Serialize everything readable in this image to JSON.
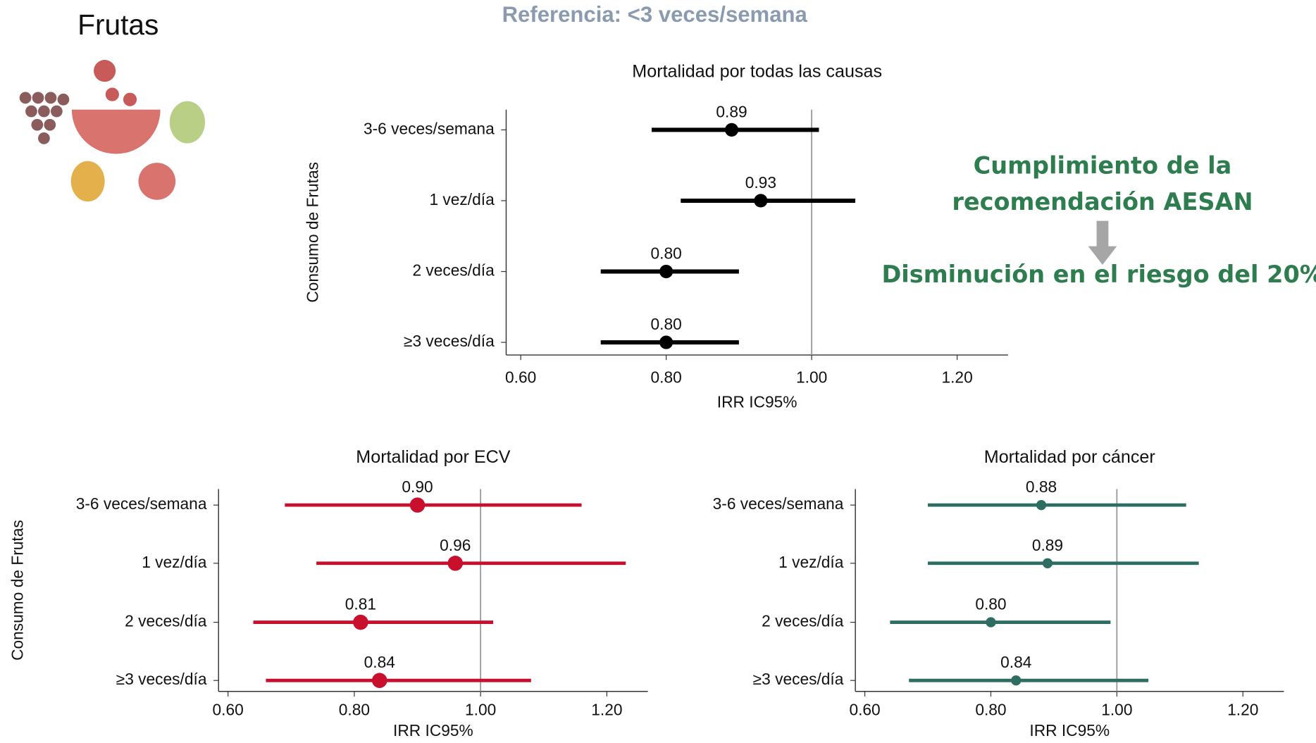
{
  "header": {
    "title": "Frutas",
    "subtitle": "Referencia: <3 veces/semana"
  },
  "annotations": [
    "Cumplimiento de la",
    "recomendación AESAN",
    "Disminución en el riesgo del 20%"
  ],
  "chart_data": [
    {
      "type": "forest",
      "title": "Mortalidad por todas las causas",
      "x_label": "IRR IC95%",
      "y_label": "Consumo de Frutas",
      "categories": [
        "3-6 veces/semana",
        "1 vez/día",
        "2 veces/día",
        "≥3 veces/día"
      ],
      "values": [
        0.89,
        0.93,
        0.8,
        0.8
      ],
      "value_labels": [
        "0.89",
        "0.93",
        "0.80",
        "0.80"
      ],
      "lower": [
        0.78,
        0.82,
        0.71,
        0.71
      ],
      "upper": [
        1.01,
        1.06,
        0.9,
        0.9
      ],
      "color": "#000000",
      "reference": 1,
      "xlim": [
        0.58,
        1.27
      ],
      "xticks": [
        {
          "value": 0.6,
          "label": "0.60"
        },
        {
          "value": 0.8,
          "label": "0.80"
        },
        {
          "value": 1,
          "label": "1.00"
        },
        {
          "value": 1.2,
          "label": "1.20"
        }
      ]
    },
    {
      "type": "forest",
      "title": "Mortalidad por ECV",
      "x_label": "IRR IC95%",
      "y_label": "Consumo de Frutas",
      "categories": [
        "3-6 veces/semana",
        "1 vez/día",
        "2 veces/día",
        "≥3 veces/día"
      ],
      "values": [
        0.9,
        0.96,
        0.81,
        0.84
      ],
      "value_labels": [
        "0.90",
        "0.96",
        "0.81",
        "0.84"
      ],
      "lower": [
        0.69,
        0.74,
        0.64,
        0.66
      ],
      "upper": [
        1.16,
        1.23,
        1.02,
        1.08
      ],
      "color": "#c8102e",
      "reference": 1,
      "xlim": [
        0.585,
        1.265
      ],
      "xticks": [
        {
          "value": 0.6,
          "label": "0.60"
        },
        {
          "value": 0.8,
          "label": "0.80"
        },
        {
          "value": 1,
          "label": "1.00"
        },
        {
          "value": 1.2,
          "label": "1.20"
        }
      ]
    },
    {
      "type": "forest",
      "title": "Mortalidad por cáncer",
      "x_label": "IRR IC95%",
      "categories": [
        "3-6 veces/semana",
        "1 vez/día",
        "2 veces/día",
        "≥3 veces/día"
      ],
      "values": [
        0.88,
        0.89,
        0.8,
        0.84
      ],
      "value_labels": [
        "0.88",
        "0.89",
        "0.80",
        "0.84"
      ],
      "lower": [
        0.7,
        0.7,
        0.64,
        0.67
      ],
      "upper": [
        1.11,
        1.13,
        0.99,
        1.05
      ],
      "color": "#2e6e62",
      "reference": 1,
      "xlim": [
        0.585,
        1.265
      ],
      "xticks": [
        {
          "value": 0.6,
          "label": "0.60"
        },
        {
          "value": 0.8,
          "label": "0.80"
        },
        {
          "value": 1,
          "label": "1.00"
        },
        {
          "value": 1.2,
          "label": "1.20"
        }
      ]
    }
  ]
}
